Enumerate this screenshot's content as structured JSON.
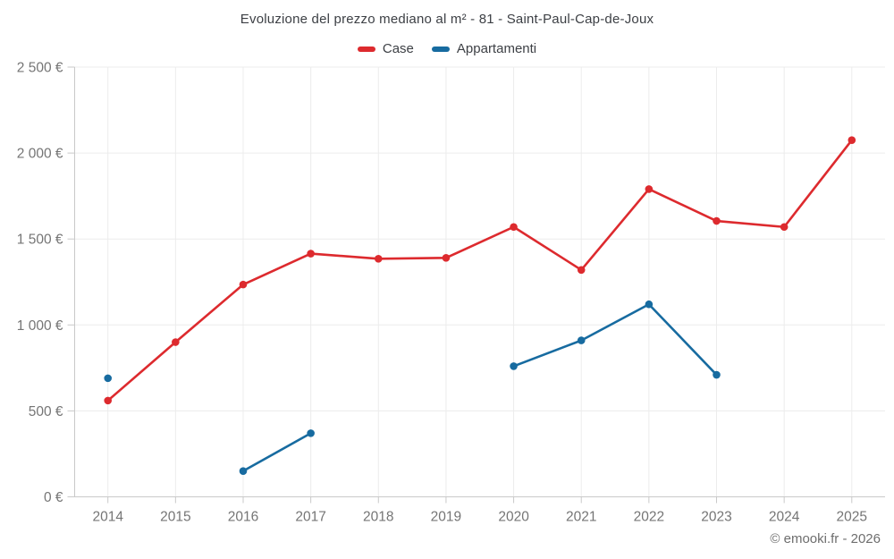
{
  "title": "Evoluzione del prezzo mediano al m² - 81 - Saint-Paul-Cap-de-Joux",
  "copyright": "© emooki.fr - 2026",
  "legend": [
    {
      "label": "Case",
      "color": "#dd2a2e"
    },
    {
      "label": "Appartamenti",
      "color": "#176ba0"
    }
  ],
  "chart_data": {
    "type": "line",
    "title": "Evoluzione del prezzo mediano al m² - 81 - Saint-Paul-Cap-de-Joux",
    "categories": [
      "2014",
      "2015",
      "2016",
      "2017",
      "2018",
      "2019",
      "2020",
      "2021",
      "2022",
      "2023",
      "2024",
      "2025"
    ],
    "series": [
      {
        "name": "Case",
        "color": "#dd2a2e",
        "values": [
          560,
          900,
          1235,
          1415,
          1385,
          1390,
          1570,
          1320,
          1790,
          1605,
          1570,
          2075
        ]
      },
      {
        "name": "Appartamenti",
        "color": "#176ba0",
        "values": [
          690,
          null,
          150,
          370,
          null,
          null,
          760,
          910,
          1120,
          710,
          null,
          null
        ]
      }
    ],
    "xlabel": "",
    "ylabel": "",
    "ylim": [
      0,
      2500
    ],
    "yticks": {
      "values": [
        0,
        500,
        1000,
        1500,
        2000,
        2500
      ],
      "labels": [
        "0 €",
        "500 €",
        "1 000 €",
        "1 500 €",
        "2 000 €",
        "2 500 €"
      ]
    },
    "grid": true,
    "legend_position": "top",
    "colors": {
      "grid_line": "#ececec",
      "axis_line": "#c9c9c9",
      "tick_label": "#757575",
      "title_text": "#3d4045"
    }
  }
}
